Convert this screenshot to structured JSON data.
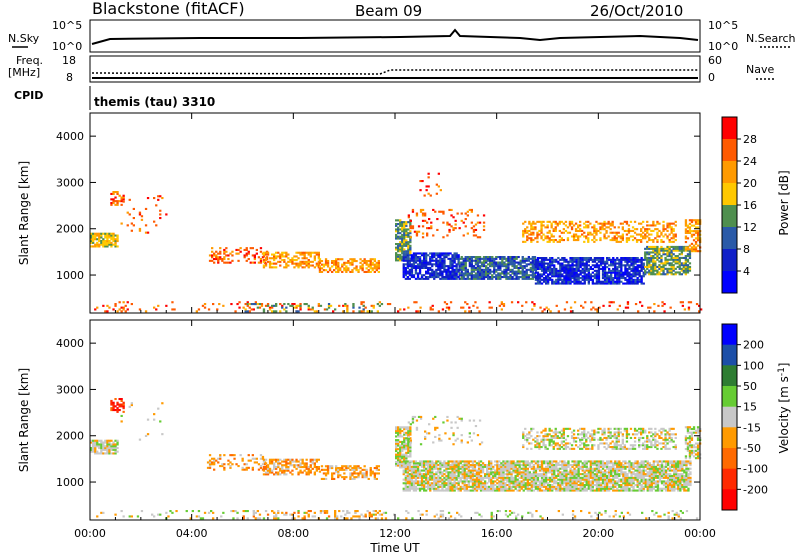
{
  "header": {
    "station": "Blackstone (fitACF)",
    "beam": "Beam 09",
    "date": "26/Oct/2010"
  },
  "top_panels": {
    "nsky_label": "N.Sky",
    "nsky_ticks": [
      "10^5",
      "10^0"
    ],
    "nsearch_label": "N.Search",
    "nsearch_ticks": [
      "10^5",
      "10^0"
    ],
    "freq_label_1": "Freq.",
    "freq_label_2": "[MHz]",
    "freq_ticks": [
      "18",
      "8"
    ],
    "nave_label": "Nave",
    "nave_ticks": [
      "60",
      "0"
    ],
    "cpid_label": "CPID",
    "cpid_value": "themis (tau) 3310"
  },
  "chart_data": [
    {
      "type": "heatmap",
      "name": "power",
      "ylabel": "Slant Range [km]",
      "ylim": [
        180,
        4500
      ],
      "yticks": [
        "4000",
        "3000",
        "2000",
        "1000"
      ],
      "xticks": [
        "00:00",
        "04:00",
        "08:00",
        "12:00",
        "16:00",
        "20:00",
        "00:00"
      ],
      "xlim_hours": [
        0,
        24
      ],
      "colorbar": {
        "label": "Power [dB]",
        "ticks": [
          "28",
          "24",
          "20",
          "16",
          "12",
          "8",
          "4"
        ],
        "colors": [
          "#ff0000",
          "#ff5a00",
          "#ff9a00",
          "#ffc800",
          "#4f8f4f",
          "#2a5aa8",
          "#1020c8",
          "#0000ff"
        ]
      },
      "regions": [
        {
          "t0": 0.0,
          "t1": 1.1,
          "r0": 1600,
          "r1": 1900,
          "level": 3,
          "density": 0.8
        },
        {
          "t0": 0.8,
          "t1": 1.3,
          "r0": 2500,
          "r1": 2800,
          "level": 1,
          "density": 0.5
        },
        {
          "t0": 1.2,
          "t1": 3.0,
          "r0": 1900,
          "r1": 2700,
          "level": 1,
          "density": 0.05
        },
        {
          "t0": 4.6,
          "t1": 7.0,
          "r0": 1250,
          "r1": 1600,
          "level": 1,
          "density": 0.35
        },
        {
          "t0": 6.8,
          "t1": 9.0,
          "r0": 1150,
          "r1": 1500,
          "level": 2,
          "density": 0.6
        },
        {
          "t0": 9.0,
          "t1": 11.4,
          "r0": 1050,
          "r1": 1350,
          "level": 2,
          "density": 0.55
        },
        {
          "t0": 12.0,
          "t1": 12.6,
          "r0": 1300,
          "r1": 2200,
          "level": 4,
          "density": 0.8
        },
        {
          "t0": 12.3,
          "t1": 14.5,
          "r0": 900,
          "r1": 1450,
          "level": 6,
          "density": 0.8
        },
        {
          "t0": 14.5,
          "t1": 17.5,
          "r0": 900,
          "r1": 1400,
          "level": 5,
          "density": 0.8
        },
        {
          "t0": 17.5,
          "t1": 21.8,
          "r0": 800,
          "r1": 1350,
          "level": 6,
          "density": 0.8
        },
        {
          "t0": 21.8,
          "t1": 23.6,
          "r0": 1000,
          "r1": 1600,
          "level": 4,
          "density": 0.7
        },
        {
          "t0": 17.0,
          "t1": 23.0,
          "r0": 1700,
          "r1": 2150,
          "level": 2,
          "density": 0.45
        },
        {
          "t0": 12.5,
          "t1": 15.5,
          "r0": 1800,
          "r1": 2400,
          "level": 1,
          "density": 0.15
        },
        {
          "t0": 12.8,
          "t1": 14.0,
          "r0": 2700,
          "r1": 3200,
          "level": 1,
          "density": 0.05
        },
        {
          "t0": 23.4,
          "t1": 24.0,
          "r0": 1500,
          "r1": 2200,
          "level": 2,
          "density": 0.6
        },
        {
          "t0": 0.0,
          "t1": 24.0,
          "r0": 200,
          "r1": 400,
          "level": 1,
          "density": 0.12
        },
        {
          "t0": 6.0,
          "t1": 11.5,
          "r0": 200,
          "r1": 380,
          "level": 4,
          "density": 0.2
        }
      ]
    },
    {
      "type": "heatmap",
      "name": "velocity",
      "ylabel": "Slant Range [km]",
      "ylim": [
        180,
        4500
      ],
      "yticks": [
        "4000",
        "3000",
        "2000",
        "1000"
      ],
      "xticks": [
        "00:00",
        "04:00",
        "08:00",
        "12:00",
        "16:00",
        "20:00",
        "00:00"
      ],
      "xlabel": "Time UT",
      "xlim_hours": [
        0,
        24
      ],
      "colorbar": {
        "label": "Velocity [m s^-1]",
        "ticks": [
          "200",
          "100",
          "50",
          "15",
          "-15",
          "-50",
          "-100",
          "-200"
        ],
        "colors": [
          "#0000ff",
          "#1c4fa8",
          "#2e7d32",
          "#66cc33",
          "#c8c8c8",
          "#ff9a00",
          "#ff6a00",
          "#ff2a00",
          "#ff0000"
        ]
      },
      "regions": [
        {
          "t0": 0.0,
          "t1": 1.1,
          "r0": 1600,
          "r1": 1900,
          "level": 4,
          "density": 0.8
        },
        {
          "t0": 0.8,
          "t1": 1.3,
          "r0": 2500,
          "r1": 2800,
          "level": 7,
          "density": 0.6
        },
        {
          "t0": 1.2,
          "t1": 3.0,
          "r0": 1900,
          "r1": 2700,
          "level": 4,
          "density": 0.05
        },
        {
          "t0": 4.6,
          "t1": 7.0,
          "r0": 1250,
          "r1": 1600,
          "level": 5,
          "density": 0.3
        },
        {
          "t0": 6.8,
          "t1": 9.0,
          "r0": 1150,
          "r1": 1500,
          "level": 5,
          "density": 0.55
        },
        {
          "t0": 9.0,
          "t1": 11.4,
          "r0": 1050,
          "r1": 1350,
          "level": 5,
          "density": 0.5
        },
        {
          "t0": 12.0,
          "t1": 12.6,
          "r0": 1300,
          "r1": 2200,
          "level": 4,
          "density": 0.8
        },
        {
          "t0": 12.3,
          "t1": 23.6,
          "r0": 800,
          "r1": 1450,
          "level": 4,
          "density": 0.85
        },
        {
          "t0": 17.0,
          "t1": 23.0,
          "r0": 1700,
          "r1": 2150,
          "level": 4,
          "density": 0.45
        },
        {
          "t0": 12.5,
          "t1": 15.5,
          "r0": 1800,
          "r1": 2400,
          "level": 4,
          "density": 0.15
        },
        {
          "t0": 23.4,
          "t1": 24.0,
          "r0": 1500,
          "r1": 2200,
          "level": 4,
          "density": 0.6
        },
        {
          "t0": 0.0,
          "t1": 24.0,
          "r0": 200,
          "r1": 380,
          "level": 4,
          "density": 0.12
        },
        {
          "t0": 6.0,
          "t1": 11.5,
          "r0": 200,
          "r1": 380,
          "level": 5,
          "density": 0.2
        }
      ]
    }
  ]
}
